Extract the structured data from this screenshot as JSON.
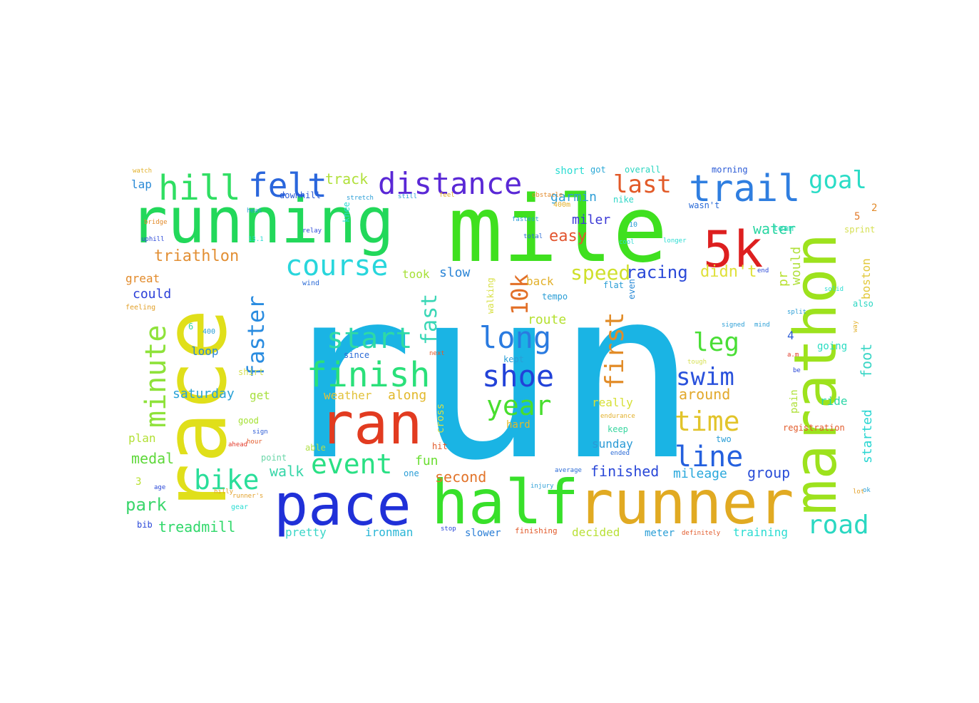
{
  "words": [
    {
      "text": "run",
      "color": "#1ab4e4"
    },
    {
      "text": "mile",
      "color": "#3fe01f"
    },
    {
      "text": "running",
      "color": "#22d85a"
    },
    {
      "text": "race",
      "color": "#e0df1a"
    },
    {
      "text": "marathon",
      "color": "#9de21d"
    },
    {
      "text": "pace",
      "color": "#2030d8"
    },
    {
      "text": "half",
      "color": "#38e02a"
    },
    {
      "text": "runner",
      "color": "#e1aa22"
    },
    {
      "text": "ran",
      "color": "#e23b20"
    },
    {
      "text": "5k",
      "color": "#dd1f1f"
    },
    {
      "text": "trail",
      "color": "#2f7ee0"
    },
    {
      "text": "hill",
      "color": "#2fde62"
    },
    {
      "text": "felt",
      "color": "#2a66dc"
    },
    {
      "text": "distance",
      "color": "#5a28d6"
    },
    {
      "text": "finish",
      "color": "#2ae07a"
    },
    {
      "text": "course",
      "color": "#28d6dc"
    },
    {
      "text": "start",
      "color": "#2ed9a6"
    },
    {
      "text": "long",
      "color": "#2a7be0"
    },
    {
      "text": "shoe",
      "color": "#2242d8"
    },
    {
      "text": "minute",
      "color": "#8ee23a"
    },
    {
      "text": "faster",
      "color": "#2a8ce0"
    },
    {
      "text": "first",
      "color": "#e28c28"
    },
    {
      "text": "last",
      "color": "#e25a28"
    },
    {
      "text": "goal",
      "color": "#2adcc6"
    },
    {
      "text": "time",
      "color": "#e2c42a"
    },
    {
      "text": "line",
      "color": "#2460de"
    },
    {
      "text": "swim",
      "color": "#2a52dc"
    },
    {
      "text": "leg",
      "color": "#4ade36"
    },
    {
      "text": "bike",
      "color": "#2ade9a"
    },
    {
      "text": "event",
      "color": "#2ae084"
    },
    {
      "text": "year",
      "color": "#48de2e"
    },
    {
      "text": "road",
      "color": "#2ad8c2"
    },
    {
      "text": "10k",
      "color": "#e27028"
    },
    {
      "text": "fast",
      "color": "#3ad7b6"
    },
    {
      "text": "speed",
      "color": "#cfe02c"
    },
    {
      "text": "racing",
      "color": "#2a48d8"
    },
    {
      "text": "didn't",
      "color": "#dfe03a"
    },
    {
      "text": "triathlon",
      "color": "#e28f34"
    },
    {
      "text": "easy",
      "color": "#e2542e"
    },
    {
      "text": "miler",
      "color": "#3a38d6"
    },
    {
      "text": "water",
      "color": "#2ad6a2"
    },
    {
      "text": "garmin",
      "color": "#2e9ed6"
    },
    {
      "text": "track",
      "color": "#b0e03a"
    },
    {
      "text": "lap",
      "color": "#2a8ad6"
    },
    {
      "text": "great",
      "color": "#e28a2a"
    },
    {
      "text": "could",
      "color": "#2a3ed8"
    },
    {
      "text": "slow",
      "color": "#2a84d6"
    },
    {
      "text": "took",
      "color": "#a6e036"
    },
    {
      "text": "back",
      "color": "#e2b02a"
    },
    {
      "text": "route",
      "color": "#b4e02e"
    },
    {
      "text": "finished",
      "color": "#2a48d8"
    },
    {
      "text": "mileage",
      "color": "#2aa8dc"
    },
    {
      "text": "group",
      "color": "#2a4ed8"
    },
    {
      "text": "saturday",
      "color": "#2aa2d6"
    },
    {
      "text": "treadmill",
      "color": "#30d86a"
    },
    {
      "text": "park",
      "color": "#3ad66c"
    },
    {
      "text": "medal",
      "color": "#5ed83a"
    },
    {
      "text": "plan",
      "color": "#b2e034"
    },
    {
      "text": "walk",
      "color": "#36d6a8"
    },
    {
      "text": "second",
      "color": "#e2742a"
    },
    {
      "text": "fun",
      "color": "#6ade32"
    },
    {
      "text": "sunday",
      "color": "#2a9ad6"
    },
    {
      "text": "pretty",
      "color": "#3ad6c8"
    },
    {
      "text": "ironman",
      "color": "#2ab6d6"
    },
    {
      "text": "slower",
      "color": "#2a7ed6"
    },
    {
      "text": "decided",
      "color": "#b8e036"
    },
    {
      "text": "meter",
      "color": "#2a9ed6"
    },
    {
      "text": "training",
      "color": "#2adcd2"
    },
    {
      "text": "loop",
      "color": "#2a86d6"
    },
    {
      "text": "around",
      "color": "#e2a82a"
    },
    {
      "text": "really",
      "color": "#d6e036"
    },
    {
      "text": "weather",
      "color": "#e2c23a"
    },
    {
      "text": "along",
      "color": "#e2b82a"
    },
    {
      "text": "hard",
      "color": "#e2ba2a"
    },
    {
      "text": "keep",
      "color": "#3ad6a0"
    },
    {
      "text": "good",
      "color": "#a2e02e"
    },
    {
      "text": "point",
      "color": "#6ad6a8"
    },
    {
      "text": "get",
      "color": "#a8e040"
    },
    {
      "text": "pr",
      "color": "#b8e030"
    },
    {
      "text": "would",
      "color": "#b0e03a"
    },
    {
      "text": "boston",
      "color": "#e2c83a"
    },
    {
      "text": "going",
      "color": "#2adcc2"
    },
    {
      "text": "foot",
      "color": "#3ad6c6"
    },
    {
      "text": "started",
      "color": "#2ad6d2"
    },
    {
      "text": "ride",
      "color": "#2ad6a6"
    },
    {
      "text": "pain",
      "color": "#aee036"
    },
    {
      "text": "registration",
      "color": "#e25a2a"
    },
    {
      "text": "cross",
      "color": "#d8e046"
    },
    {
      "text": "walking",
      "color": "#d8e046"
    },
    {
      "text": "hit",
      "color": "#e25a2a"
    },
    {
      "text": "able",
      "color": "#b2e04a"
    },
    {
      "text": "shirt",
      "color": "#d6e052"
    },
    {
      "text": "sprint",
      "color": "#d6e052"
    },
    {
      "text": "also",
      "color": "#2ad6c2"
    },
    {
      "text": "wasn't",
      "color": "#2a6ad6"
    },
    {
      "text": "morning",
      "color": "#2a5ad6"
    },
    {
      "text": "overall",
      "color": "#2ad6c0"
    },
    {
      "text": "short",
      "color": "#2adcd2"
    },
    {
      "text": "got",
      "color": "#2aa8d6"
    },
    {
      "text": "downhill",
      "color": "#2a5ad6"
    },
    {
      "text": "nike",
      "color": "#2ad6c6"
    },
    {
      "text": "team",
      "color": "#2ad6b6"
    },
    {
      "text": "knee",
      "color": "#2adcd2"
    },
    {
      "text": "tempo",
      "color": "#2a9ed6"
    },
    {
      "text": "kept",
      "color": "#2a9ed6"
    },
    {
      "text": "since",
      "color": "#2a6ad6"
    },
    {
      "text": "two",
      "color": "#2a9ed6"
    },
    {
      "text": "one",
      "color": "#2a9ed6"
    },
    {
      "text": "even",
      "color": "#2a8ad6"
    },
    {
      "text": "flat",
      "color": "#2a9ed6"
    },
    {
      "text": "feeling",
      "color": "#e2a02a"
    },
    {
      "text": "400",
      "color": "#2a9ed6"
    },
    {
      "text": "400m",
      "color": "#e2b02a"
    },
    {
      "text": "2",
      "color": "#e28a2a"
    },
    {
      "text": "3",
      "color": "#b8e030"
    },
    {
      "text": "4",
      "color": "#2a5ad6"
    },
    {
      "text": "5",
      "color": "#e27a2a"
    },
    {
      "text": "6",
      "color": "#3ad6a0"
    },
    {
      "text": "10",
      "color": "#2a9ed6"
    },
    {
      "text": "bib",
      "color": "#2a48d8"
    },
    {
      "text": "gear",
      "color": "#2adcd2"
    },
    {
      "text": "age",
      "color": "#2a48d8"
    },
    {
      "text": "runner's",
      "color": "#e2a02a"
    },
    {
      "text": "uphill",
      "color": "#2a48d8"
    },
    {
      "text": "bridge",
      "color": "#e28a2a"
    },
    {
      "text": "relay",
      "color": "#2a48d8"
    },
    {
      "text": "split",
      "color": "#2a9ed6"
    },
    {
      "text": "ahead",
      "color": "#e23a2a"
    },
    {
      "text": "sign",
      "color": "#2a5ad6"
    },
    {
      "text": "endurance",
      "color": "#e2b02a"
    },
    {
      "text": "average",
      "color": "#2a6ad6"
    },
    {
      "text": "ended",
      "color": "#2a6ad6"
    },
    {
      "text": "stop",
      "color": "#2a48d8"
    },
    {
      "text": "finishing",
      "color": "#e25a2a"
    },
    {
      "text": "definitely",
      "color": "#e25a2a"
    },
    {
      "text": "signed",
      "color": "#2a9ed6"
    },
    {
      "text": "tough",
      "color": "#d6e052"
    },
    {
      "text": "next",
      "color": "#e25a2a"
    },
    {
      "text": "wind",
      "color": "#2a6ad6"
    },
    {
      "text": "hour",
      "color": "#e25a2a"
    },
    {
      "text": "total",
      "color": "#2a6ad6"
    },
    {
      "text": "longer",
      "color": "#2adcd2"
    },
    {
      "text": "cool",
      "color": "#2adcd2"
    },
    {
      "text": "fastest",
      "color": "#2a9ed6"
    },
    {
      "text": "obstacle",
      "color": "#e28a2a"
    },
    {
      "text": "feel",
      "color": "#e2b02a"
    },
    {
      "text": "still",
      "color": "#2a9ed6"
    },
    {
      "text": "stretch",
      "color": "#2a9ed6"
    },
    {
      "text": "heat",
      "color": "#2a9ed6"
    },
    {
      "text": "watch",
      "color": "#e2b02a"
    },
    {
      "text": "end",
      "color": "#2a48d8"
    },
    {
      "text": "solid",
      "color": "#2adcd2"
    },
    {
      "text": "way",
      "color": "#e2b02a"
    },
    {
      "text": "13.1",
      "color": "#2adcd2"
    },
    {
      "text": "hilly",
      "color": "#e2a02a"
    },
    {
      "text": "injury",
      "color": "#2a9ed6"
    },
    {
      "text": "a.m",
      "color": "#e23a2a"
    },
    {
      "text": "lot",
      "color": "#e2a02a"
    },
    {
      "text": "be",
      "color": "#2a48d8"
    },
    {
      "text": "mind",
      "color": "#2a9ed6"
    },
    {
      "text": "ok",
      "color": "#2a9ed6"
    }
  ]
}
